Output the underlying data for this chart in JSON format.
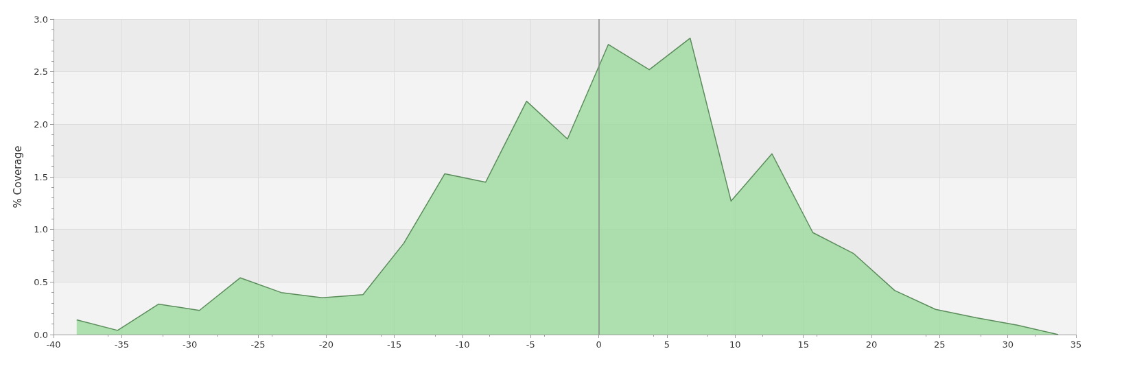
{
  "chart_data": {
    "type": "area",
    "ylabel": "% Coverage",
    "x": [
      -38.3,
      -35.3,
      -32.3,
      -29.3,
      -26.3,
      -23.3,
      -20.3,
      -17.3,
      -14.3,
      -11.3,
      -8.3,
      -5.3,
      -2.3,
      0.7,
      3.7,
      6.7,
      9.7,
      12.7,
      15.7,
      18.7,
      21.7,
      24.7,
      27.7,
      30.7,
      33.7
    ],
    "series": [
      {
        "color": "#5b8c5b",
        "values": [
          0.14,
          0.04,
          0.29,
          0.23,
          0.54,
          0.4,
          0.35,
          0.38,
          0.87,
          1.53,
          1.45,
          2.22,
          1.86,
          2.76,
          2.52,
          2.82,
          1.27,
          1.72,
          0.97,
          0.77,
          0.42,
          0.24,
          0.16,
          0.09,
          0.0
        ]
      }
    ],
    "xlim": [
      -40,
      35
    ],
    "xticks": [
      -40,
      -35,
      -30,
      -25,
      -20,
      -15,
      -10,
      -5,
      0,
      5,
      10,
      15,
      20,
      25,
      30,
      35
    ],
    "ylim": [
      0,
      3
    ],
    "yticks": [
      {
        "value": 0,
        "label": "0.0"
      },
      {
        "value": 0.5,
        "label": "0.5"
      },
      {
        "value": 1,
        "label": "1.0"
      },
      {
        "value": 1.5,
        "label": "1.5"
      },
      {
        "value": 2,
        "label": "2.0"
      },
      {
        "value": 2.5,
        "label": "2.5"
      },
      {
        "value": 3,
        "label": "3.0"
      }
    ],
    "ref_lines": [
      {
        "axis": "x",
        "value": 0,
        "color": "#888888"
      }
    ],
    "grid": true,
    "marker": "none",
    "line_style": "solid"
  }
}
